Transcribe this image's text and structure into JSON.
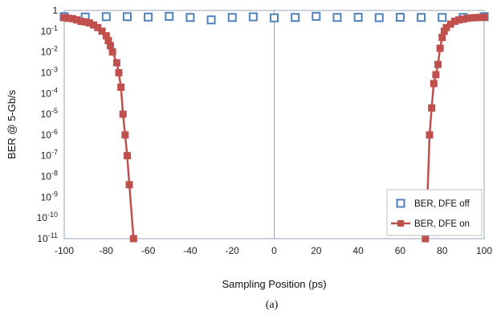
{
  "chart_data": {
    "type": "scatter",
    "xlabel": "Sampling Position (ps)",
    "ylabel": "BER @ 5-Gb/s",
    "caption": "(a)",
    "xlim": [
      -100,
      100
    ],
    "x_ticks": [
      -100,
      -80,
      -60,
      -40,
      -20,
      0,
      20,
      40,
      60,
      80,
      100
    ],
    "ylim_log10": [
      -11,
      0
    ],
    "y_ticks": [
      {
        "exp": 0,
        "base": "1",
        "sup": ""
      },
      {
        "exp": -1,
        "base": "10",
        "sup": "-1"
      },
      {
        "exp": -2,
        "base": "10",
        "sup": "-2"
      },
      {
        "exp": -3,
        "base": "10",
        "sup": "-3"
      },
      {
        "exp": -4,
        "base": "10",
        "sup": "-4"
      },
      {
        "exp": -5,
        "base": "10",
        "sup": "-5"
      },
      {
        "exp": -6,
        "base": "10",
        "sup": "-6"
      },
      {
        "exp": -7,
        "base": "10",
        "sup": "-7"
      },
      {
        "exp": -8,
        "base": "10",
        "sup": "-8"
      },
      {
        "exp": -9,
        "base": "10",
        "sup": "-9"
      },
      {
        "exp": -10,
        "base": "10",
        "sup": "-10"
      },
      {
        "exp": -11,
        "base": "10",
        "sup": "-11"
      }
    ],
    "legend_position": "bottom-right",
    "series": [
      {
        "name": "BER, DFE off",
        "color": "#4F81BD",
        "marker": "hollow-square",
        "line": false,
        "points": [
          [
            -100,
            0.5
          ],
          [
            -90,
            0.48
          ],
          [
            -80,
            0.5
          ],
          [
            -70,
            0.5
          ],
          [
            -60,
            0.48
          ],
          [
            -50,
            0.52
          ],
          [
            -40,
            0.46
          ],
          [
            -30,
            0.35
          ],
          [
            -20,
            0.46
          ],
          [
            -10,
            0.49
          ],
          [
            0,
            0.44
          ],
          [
            10,
            0.46
          ],
          [
            20,
            0.52
          ],
          [
            30,
            0.46
          ],
          [
            40,
            0.47
          ],
          [
            50,
            0.45
          ],
          [
            60,
            0.47
          ],
          [
            70,
            0.46
          ],
          [
            80,
            0.46
          ],
          [
            90,
            0.46
          ],
          [
            100,
            0.5
          ]
        ]
      },
      {
        "name": "BER, DFE on",
        "color": "#C0504D",
        "marker": "filled-square",
        "line": true,
        "points": [
          [
            -100,
            0.45
          ],
          [
            -98,
            0.42
          ],
          [
            -96,
            0.4
          ],
          [
            -94,
            0.35
          ],
          [
            -92,
            0.3
          ],
          [
            -90,
            0.28
          ],
          [
            -88,
            0.25
          ],
          [
            -86,
            0.2
          ],
          [
            -84,
            0.15
          ],
          [
            -82,
            0.1
          ],
          [
            -80,
            0.06
          ],
          [
            -79,
            0.035
          ],
          [
            -78,
            0.02
          ],
          [
            -77,
            0.01
          ],
          [
            -75,
            0.003
          ],
          [
            -74,
            0.001
          ],
          [
            -73,
            0.0002
          ],
          [
            -72,
            1e-05
          ],
          [
            -71,
            1e-06
          ],
          [
            -70,
            1e-07
          ],
          [
            -69,
            4e-09
          ],
          [
            -67,
            1e-11
          ],
          [
            72,
            1e-11
          ],
          [
            73,
            1e-09
          ],
          [
            74,
            1e-06
          ],
          [
            75,
            2e-05
          ],
          [
            76,
            0.0003
          ],
          [
            77,
            0.0008
          ],
          [
            78,
            0.0025
          ],
          [
            79,
            0.015
          ],
          [
            80,
            0.05
          ],
          [
            81,
            0.1
          ],
          [
            82,
            0.15
          ],
          [
            84,
            0.22
          ],
          [
            86,
            0.3
          ],
          [
            88,
            0.35
          ],
          [
            90,
            0.38
          ],
          [
            92,
            0.42
          ],
          [
            94,
            0.44
          ],
          [
            96,
            0.45
          ],
          [
            98,
            0.46
          ],
          [
            100,
            0.47
          ]
        ]
      }
    ]
  }
}
